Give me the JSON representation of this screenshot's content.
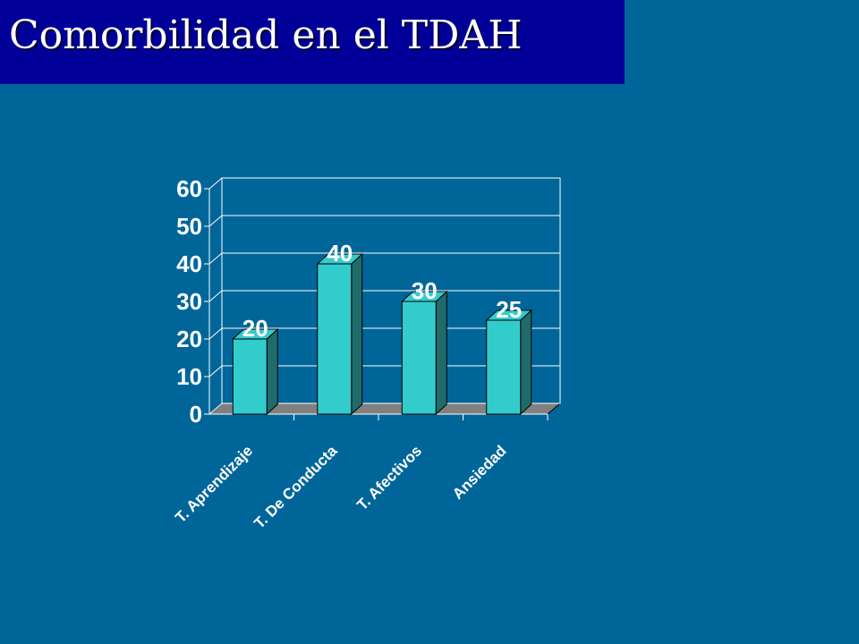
{
  "slide": {
    "title": "Comorbilidad en el TDAH",
    "colors": {
      "background": "#006699",
      "title_bar": "#000099",
      "bar_front": "#33CCCC",
      "bar_side": "#1F6B6B",
      "floor": "#808080",
      "grid": "#FFFFFF"
    }
  },
  "chart_data": {
    "type": "bar",
    "categories": [
      "T. Aprendizaje",
      "T. De Conducta",
      "T. Afectivos",
      "Ansiedad"
    ],
    "values": [
      20,
      40,
      30,
      25
    ],
    "ylim": [
      0,
      60
    ],
    "yticks": [
      0,
      10,
      20,
      30,
      40,
      50,
      60
    ],
    "grid": true,
    "legend": "none",
    "three_d": true
  }
}
